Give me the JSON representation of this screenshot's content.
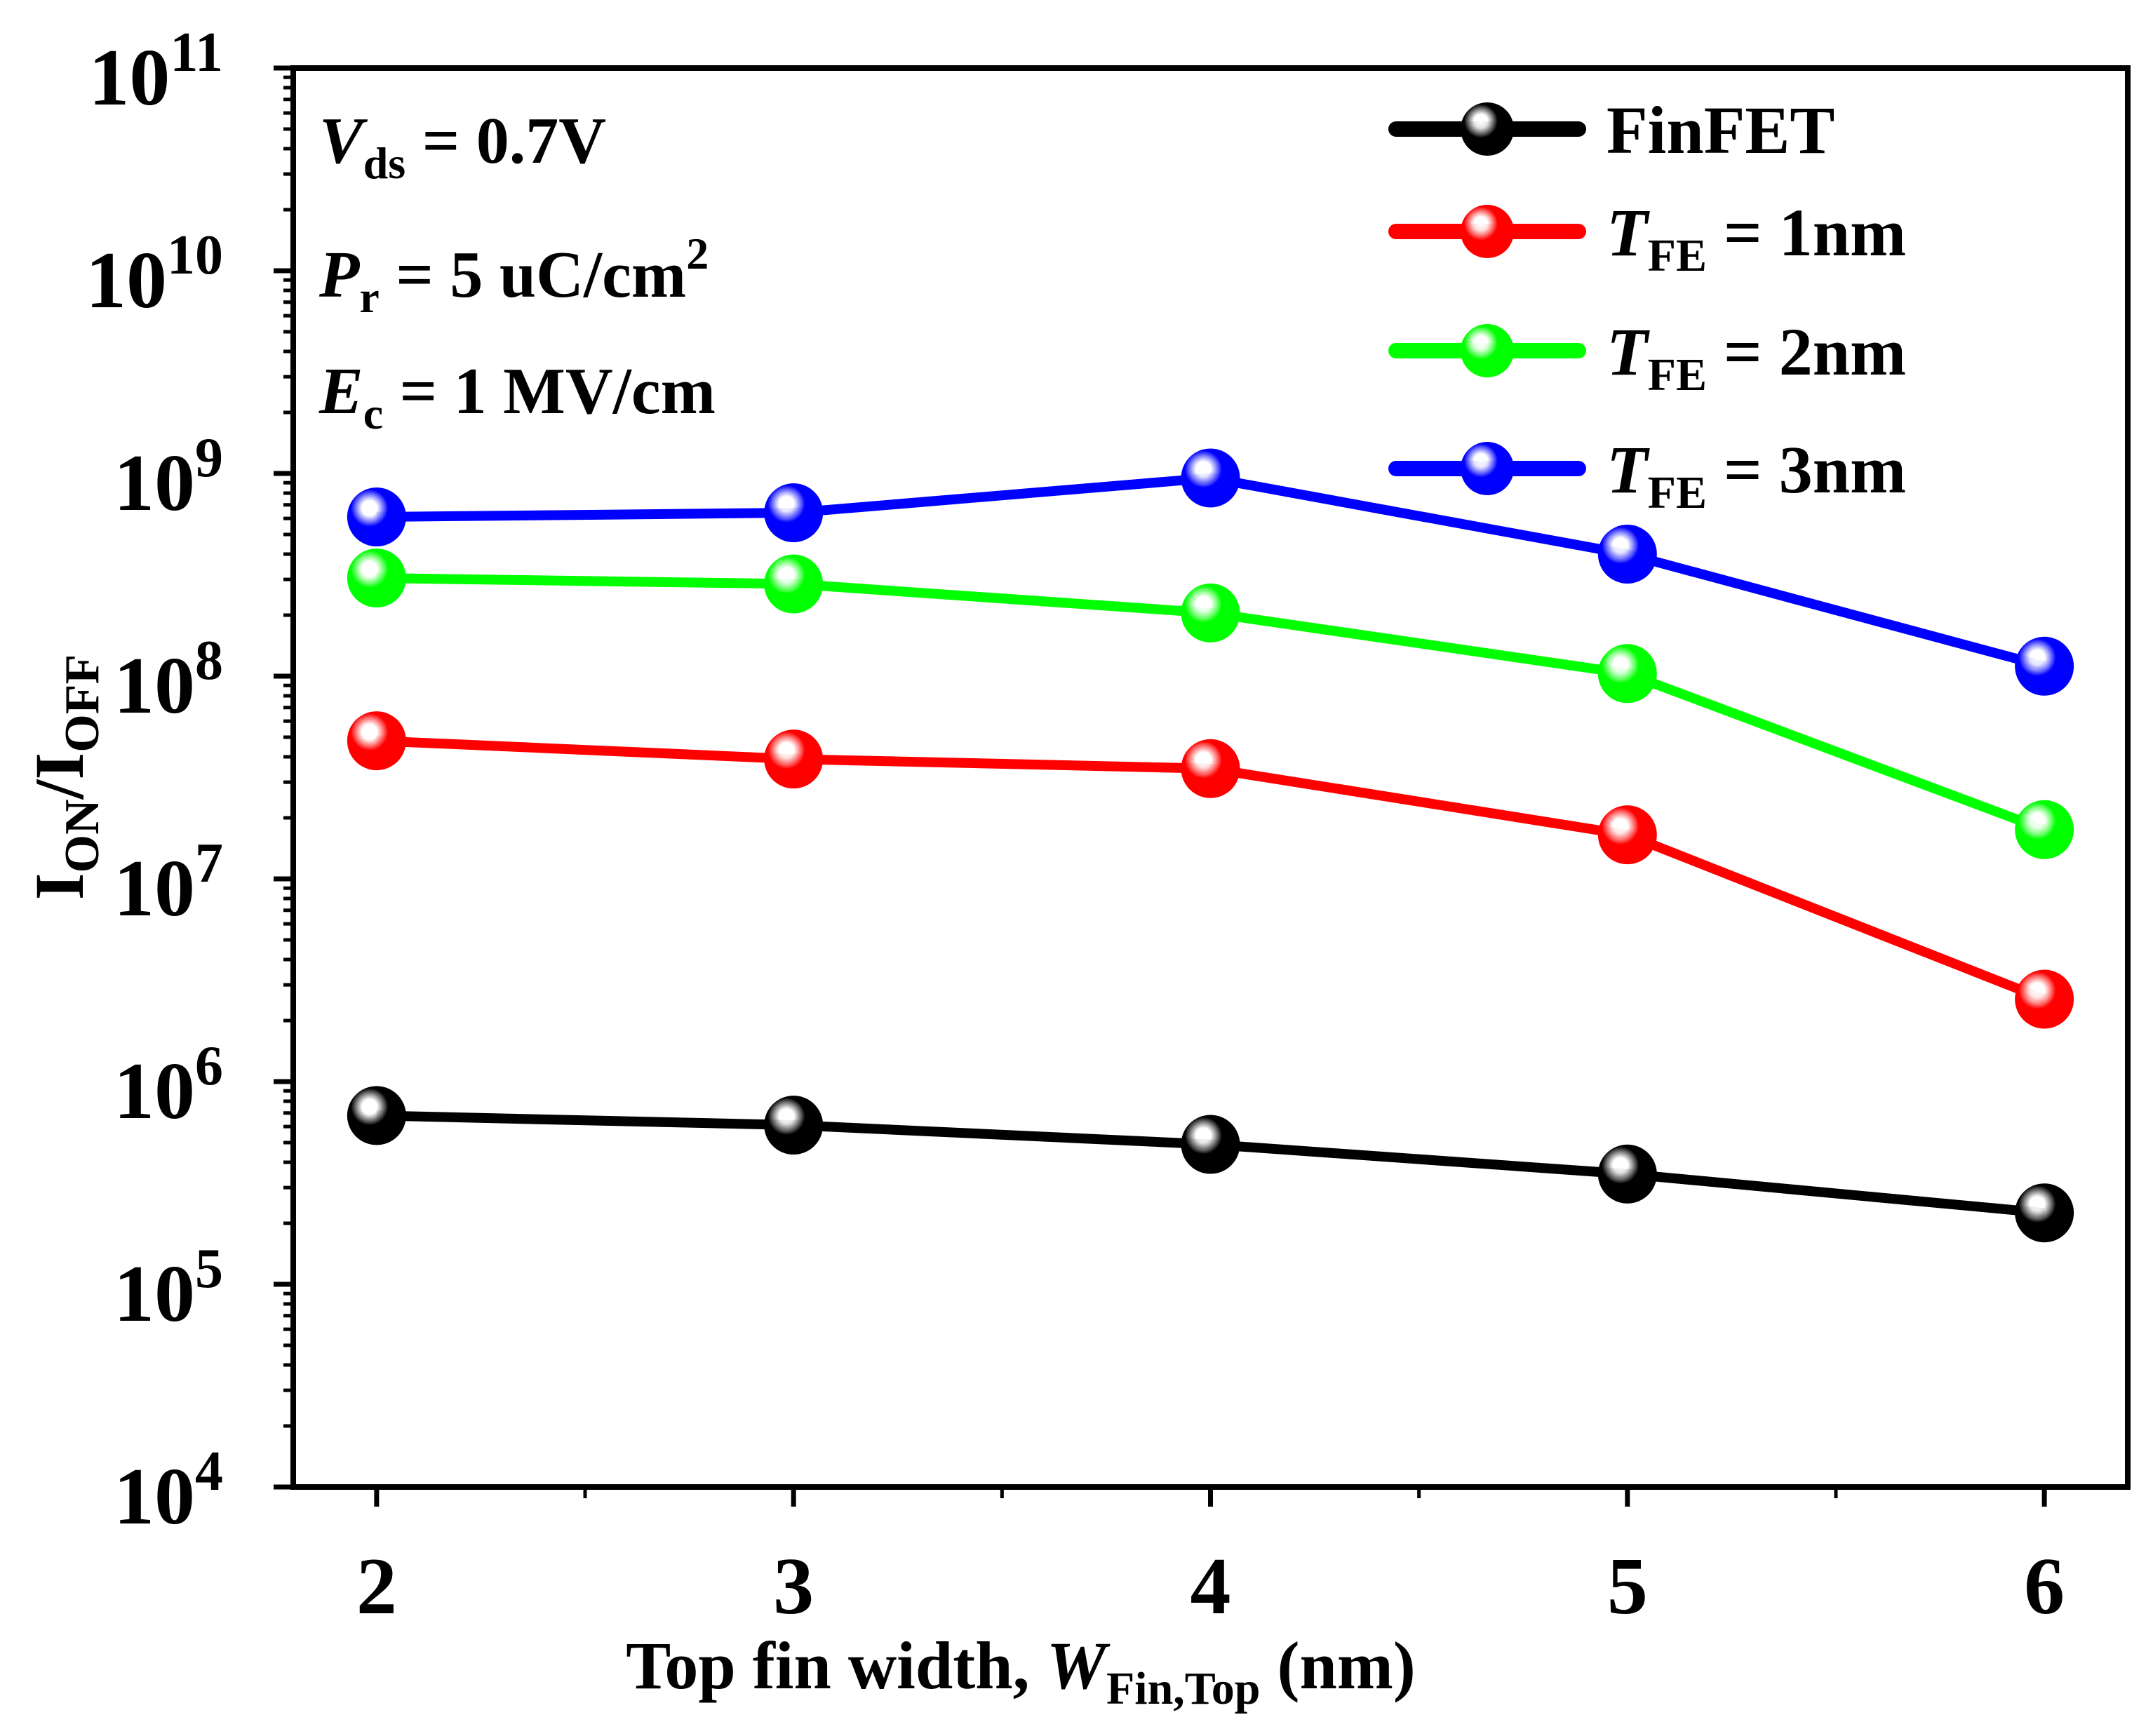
{
  "chart_data": {
    "type": "line",
    "xlabel": {
      "main": "Top fin width, ",
      "var": "W",
      "sub": "Fin,Top",
      "unit": " (nm)"
    },
    "ylabel": {
      "main1": "I",
      "sub1": "ON",
      "sep": "/",
      "main2": "I",
      "sub2": "OFF"
    },
    "x": [
      2,
      3,
      4,
      5,
      6
    ],
    "xlim": [
      1.8,
      6.2
    ],
    "x_ticks": [
      "2",
      "3",
      "4",
      "5",
      "6"
    ],
    "y_scale": "log",
    "ylim": [
      10000,
      100000000000
    ],
    "y_ticks": [
      {
        "base": "10",
        "exp": "4",
        "value": 10000
      },
      {
        "base": "10",
        "exp": "5",
        "value": 100000
      },
      {
        "base": "10",
        "exp": "6",
        "value": 1000000
      },
      {
        "base": "10",
        "exp": "7",
        "value": 10000000
      },
      {
        "base": "10",
        "exp": "8",
        "value": 100000000
      },
      {
        "base": "10",
        "exp": "9",
        "value": 1000000000
      },
      {
        "base": "10",
        "exp": "10",
        "value": 10000000000
      },
      {
        "base": "10",
        "exp": "11",
        "value": 100000000000
      }
    ],
    "series": [
      {
        "name": "FinFET",
        "color": "#000000",
        "values": [
          680000,
          610000,
          490000,
          350000,
          225000
        ]
      },
      {
        "name_var": "T",
        "name_sub": "FE",
        "name_rest": " = 1nm",
        "color": "#ff0000",
        "values": [
          48000000,
          39000000,
          35000000,
          16500000,
          2550000
        ]
      },
      {
        "name_var": "T",
        "name_sub": "FE",
        "name_rest": " = 2nm",
        "color": "#00ff00",
        "values": [
          305000000,
          285000000,
          205000000,
          103000000,
          17500000
        ]
      },
      {
        "name_var": "T",
        "name_sub": "FE",
        "name_rest": " = 3nm",
        "color": "#0000ff",
        "values": [
          610000000,
          640000000,
          950000000,
          400000000,
          112000000
        ]
      }
    ],
    "legend_position": "top-right",
    "annotations": [
      {
        "var": "V",
        "sub": "ds",
        "rest": " = 0.7V",
        "sup": ""
      },
      {
        "var": "P",
        "sub": "r",
        "rest": " = 5 uC/cm",
        "sup": "2"
      },
      {
        "var": "E",
        "sub": "c",
        "rest": " = 1 MV/cm",
        "sup": ""
      }
    ],
    "grid": false
  }
}
